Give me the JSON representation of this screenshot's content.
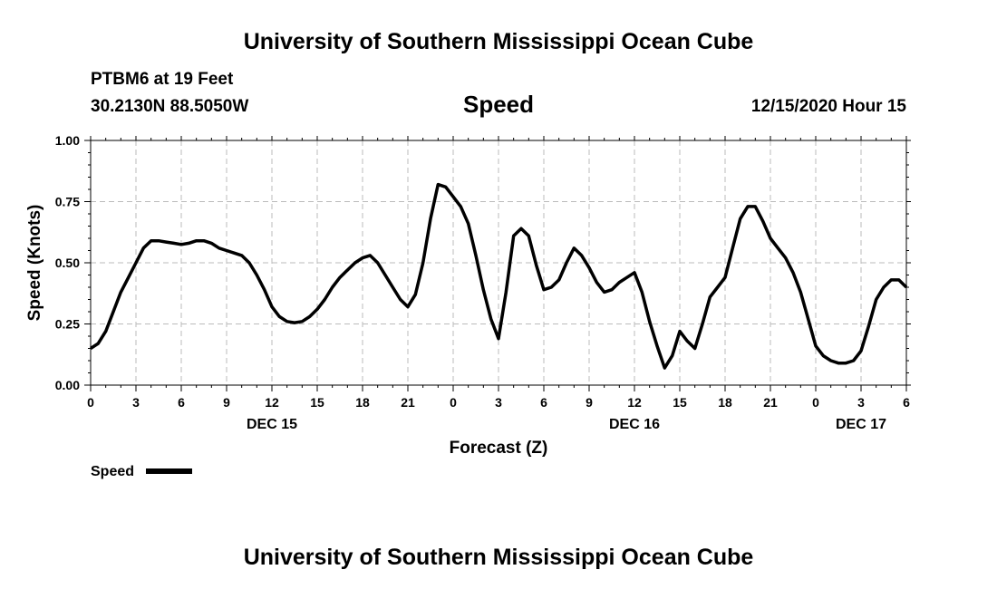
{
  "header": {
    "top_title": "University of Southern Mississippi Ocean Cube",
    "station": "PTBM6 at 19 Feet",
    "location": "30.2130N 88.5050W",
    "timestamp": "12/15/2020 Hour 15",
    "bottom_title": "University of Southern Mississippi Ocean Cube"
  },
  "chart_data": {
    "type": "line",
    "title": "Speed",
    "xlabel": "Forecast (Z)",
    "ylabel": "Speed (Knots)",
    "xlim": [
      0,
      54
    ],
    "ylim": [
      0,
      1
    ],
    "y_ticks": [
      "0.00",
      "0.25",
      "0.50",
      "0.75",
      "1.00"
    ],
    "x_tick_labels": [
      "0",
      "3",
      "6",
      "9",
      "12",
      "15",
      "18",
      "21",
      "0",
      "3",
      "6",
      "9",
      "12",
      "15",
      "18",
      "21",
      "0",
      "3",
      "6"
    ],
    "date_labels": [
      {
        "label": "DEC 15",
        "hour": 12
      },
      {
        "label": "DEC 16",
        "hour": 36
      },
      {
        "label": "DEC 17",
        "hour": 51
      }
    ],
    "grid": true,
    "legend": {
      "label": "Speed",
      "placement": "bottom-left"
    },
    "series": [
      {
        "name": "Speed",
        "x": [
          0,
          0.5,
          1,
          1.5,
          2,
          2.5,
          3,
          3.5,
          4,
          4.5,
          5,
          5.5,
          6,
          6.5,
          7,
          7.5,
          8,
          8.5,
          9,
          9.5,
          10,
          10.5,
          11,
          11.5,
          12,
          12.5,
          13,
          13.5,
          14,
          14.5,
          15,
          15.5,
          16,
          16.5,
          17,
          17.5,
          18,
          18.5,
          19,
          19.5,
          20,
          20.5,
          21,
          21.5,
          22,
          22.5,
          23,
          23.5,
          24,
          24.5,
          25,
          25.5,
          26,
          26.5,
          27,
          27.5,
          28,
          28.5,
          29,
          29.5,
          30,
          30.5,
          31,
          31.5,
          32,
          32.5,
          33,
          33.5,
          34,
          34.5,
          35,
          35.5,
          36,
          36.5,
          37,
          37.5,
          38,
          38.5,
          39,
          39.5,
          40,
          40.5,
          41,
          41.5,
          42,
          42.5,
          43,
          43.5,
          44,
          44.5,
          45,
          45.5,
          46,
          46.5,
          47,
          47.5,
          48,
          48.5,
          49,
          49.5,
          50,
          50.5,
          51,
          51.5,
          52,
          52.5,
          53,
          53.5,
          54
        ],
        "values": [
          0.15,
          0.17,
          0.22,
          0.3,
          0.38,
          0.44,
          0.5,
          0.56,
          0.59,
          0.59,
          0.585,
          0.58,
          0.575,
          0.58,
          0.59,
          0.59,
          0.58,
          0.56,
          0.55,
          0.54,
          0.53,
          0.5,
          0.45,
          0.39,
          0.32,
          0.28,
          0.26,
          0.255,
          0.26,
          0.28,
          0.31,
          0.35,
          0.4,
          0.44,
          0.47,
          0.5,
          0.52,
          0.53,
          0.5,
          0.45,
          0.4,
          0.35,
          0.32,
          0.37,
          0.5,
          0.68,
          0.82,
          0.81,
          0.77,
          0.73,
          0.66,
          0.53,
          0.39,
          0.27,
          0.19,
          0.38,
          0.61,
          0.64,
          0.61,
          0.49,
          0.39,
          0.4,
          0.43,
          0.5,
          0.56,
          0.53,
          0.48,
          0.42,
          0.38,
          0.39,
          0.42,
          0.44,
          0.46,
          0.38,
          0.26,
          0.16,
          0.07,
          0.12,
          0.22,
          0.18,
          0.15,
          0.25,
          0.36,
          0.4,
          0.44,
          0.56,
          0.68,
          0.73,
          0.73,
          0.67,
          0.6,
          0.56,
          0.52,
          0.46,
          0.38,
          0.27,
          0.16,
          0.12,
          0.1,
          0.09,
          0.09,
          0.1,
          0.14,
          0.24,
          0.35,
          0.4,
          0.43,
          0.43,
          0.4
        ]
      }
    ]
  }
}
